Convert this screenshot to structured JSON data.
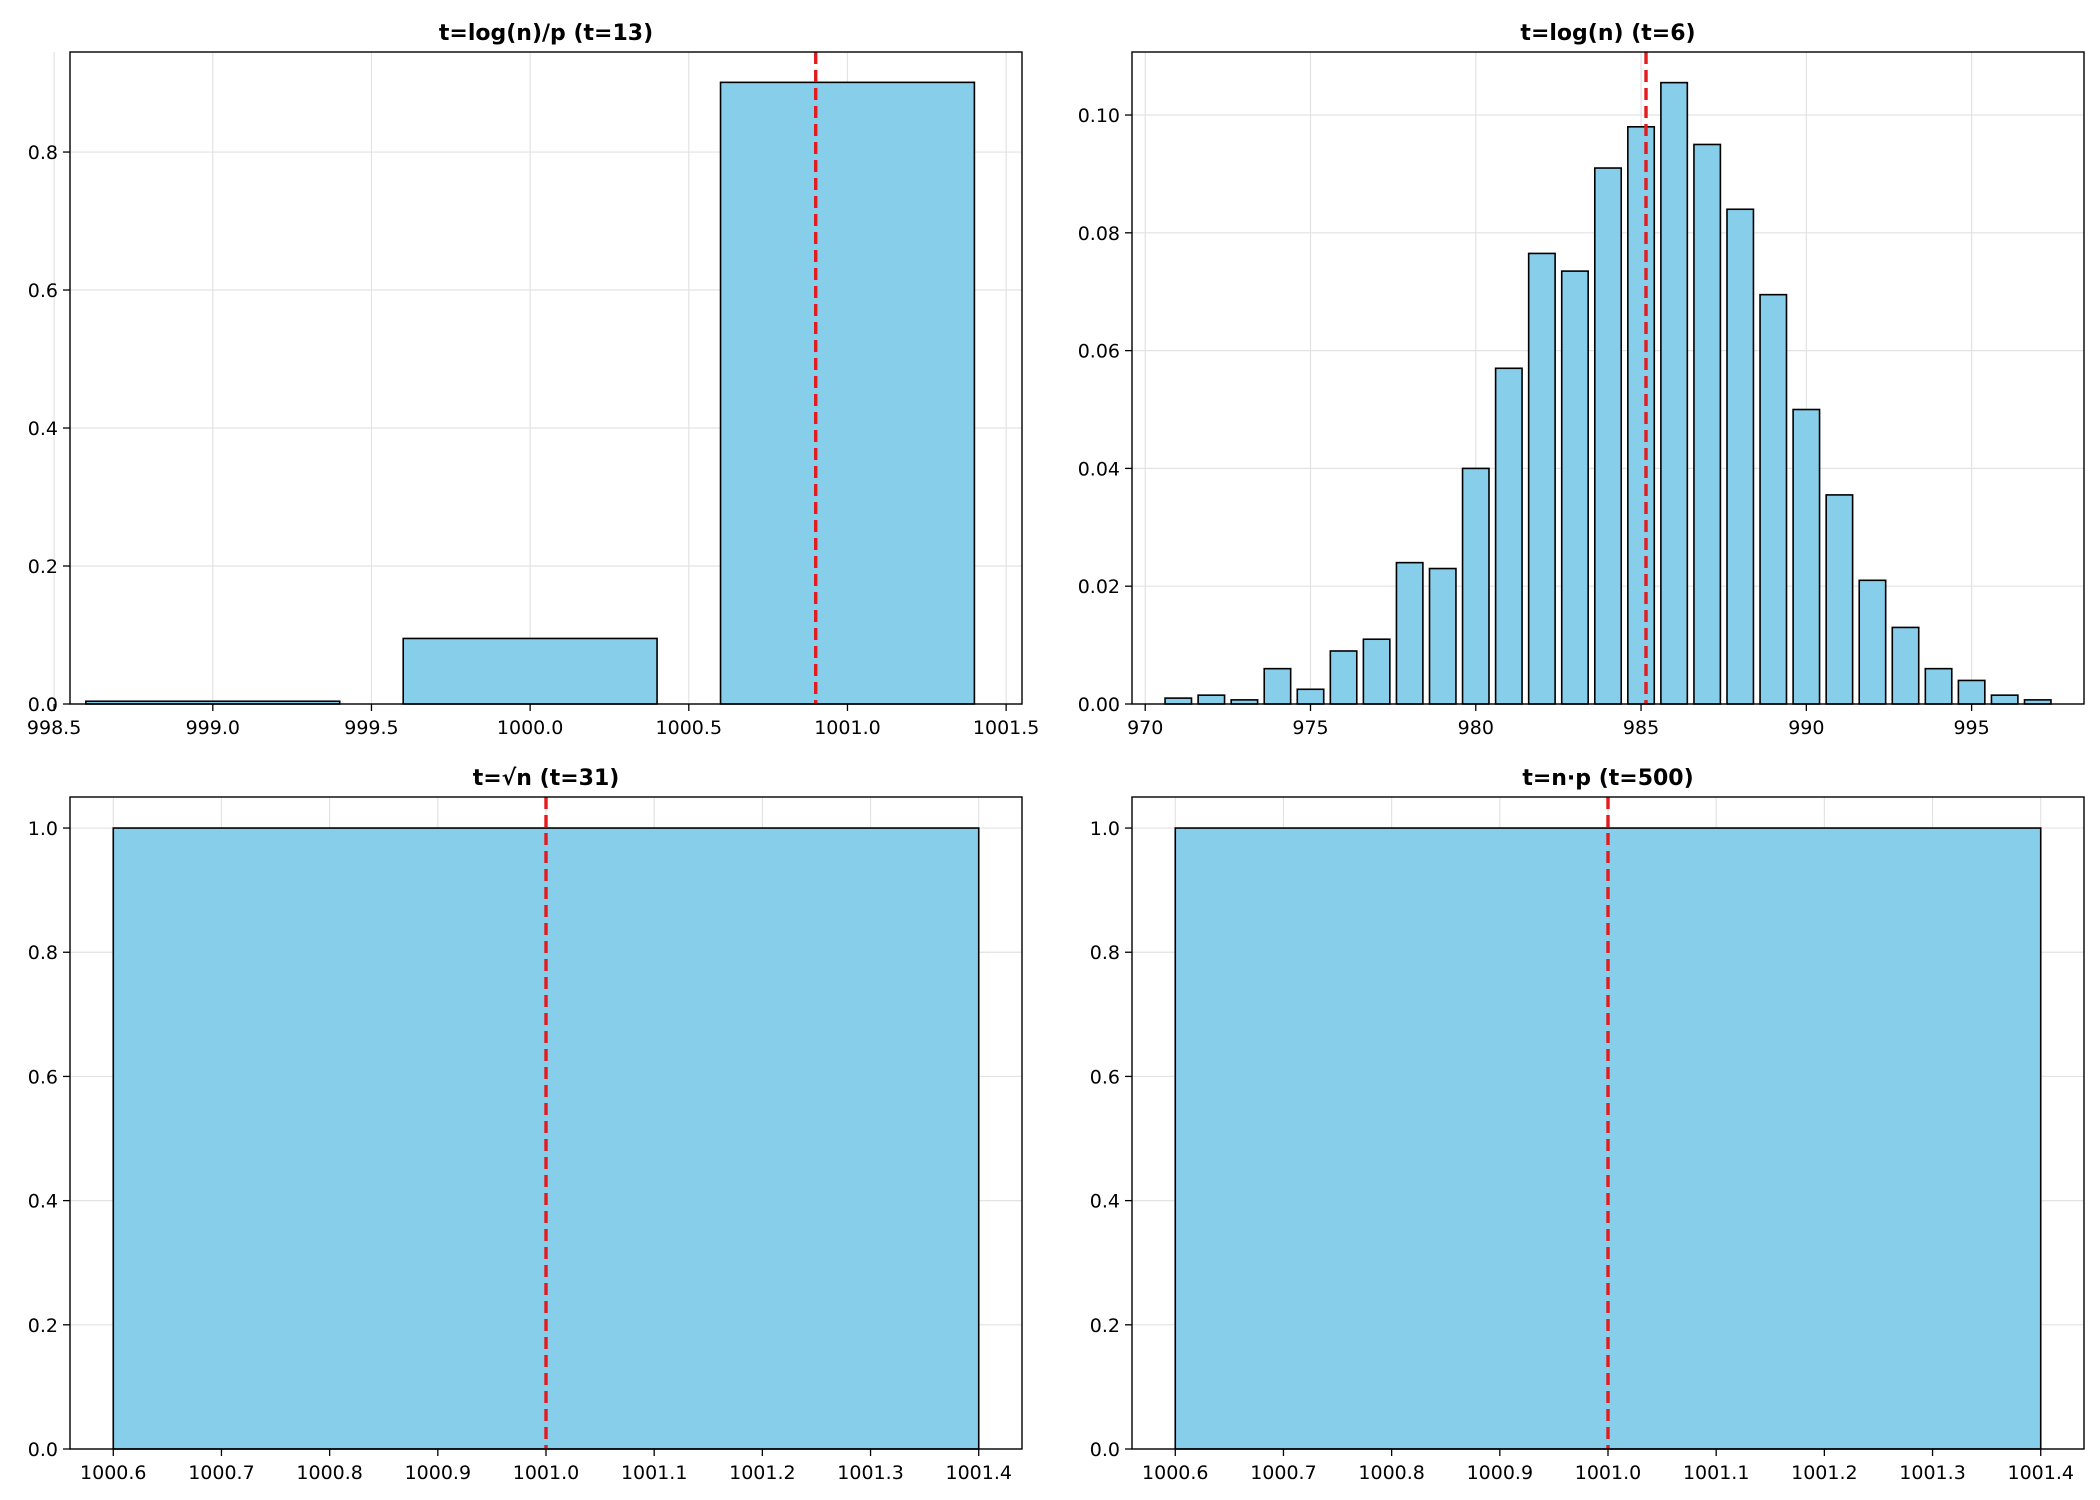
{
  "colors": {
    "bar_fill": "#87ceeb",
    "bar_edge": "#000000",
    "ref_line": "#e41a1c",
    "grid": "#e3e3e3"
  },
  "chart_data": [
    {
      "type": "bar",
      "title": "t=log(n)/p (t=13)",
      "x": [
        999.0,
        1000.0,
        1001.0
      ],
      "values": [
        0.004,
        0.095,
        0.901
      ],
      "bar_width": 0.8,
      "ref_line_x": 1000.9,
      "xlim": [
        998.55,
        1001.55
      ],
      "ylim": [
        0,
        0.945
      ],
      "xticks": [
        998.5,
        999.0,
        999.5,
        1000.0,
        1000.5,
        1001.0,
        1001.5
      ],
      "xtick_labels": [
        "998.5",
        "999.0",
        "999.5",
        "1000.0",
        "1000.5",
        "1001.0",
        "1001.5"
      ],
      "yticks": [
        0,
        0.2,
        0.4,
        0.6,
        0.8
      ],
      "ytick_labels": [
        "0.0",
        "0.2",
        "0.4",
        "0.6",
        "0.8"
      ],
      "grid": true
    },
    {
      "type": "bar",
      "title": "t=log(n) (t=6)",
      "x": [
        971,
        972,
        973,
        974,
        975,
        976,
        977,
        978,
        979,
        980,
        981,
        982,
        983,
        984,
        985,
        986,
        987,
        988,
        989,
        990,
        991,
        992,
        993,
        994,
        995,
        996,
        997
      ],
      "values": [
        0.001,
        0.0015,
        0.0007,
        0.006,
        0.0025,
        0.009,
        0.011,
        0.024,
        0.023,
        0.04,
        0.057,
        0.0765,
        0.0735,
        0.091,
        0.098,
        0.1055,
        0.095,
        0.084,
        0.0695,
        0.05,
        0.0355,
        0.021,
        0.013,
        0.006,
        0.004,
        0.0015,
        0.0007
      ],
      "bar_width": 0.8,
      "ref_line_x": 985.15,
      "xlim": [
        969.6,
        998.4
      ],
      "ylim": [
        0,
        0.1107
      ],
      "xticks": [
        970,
        975,
        980,
        985,
        990,
        995
      ],
      "xtick_labels": [
        "970",
        "975",
        "980",
        "985",
        "990",
        "995"
      ],
      "yticks": [
        0,
        0.02,
        0.04,
        0.06,
        0.08,
        0.1
      ],
      "ytick_labels": [
        "0.00",
        "0.02",
        "0.04",
        "0.06",
        "0.08",
        "0.10"
      ],
      "grid": true
    },
    {
      "type": "bar",
      "title": "t=√n (t=31)",
      "x": [
        1001.0
      ],
      "values": [
        1.0
      ],
      "bar_width": 0.8,
      "ref_line_x": 1001.0,
      "xlim": [
        1000.56,
        1001.44
      ],
      "ylim": [
        0,
        1.05
      ],
      "xticks": [
        1000.6,
        1000.7,
        1000.8,
        1000.9,
        1001.0,
        1001.1,
        1001.2,
        1001.3,
        1001.4
      ],
      "xtick_labels": [
        "1000.6",
        "1000.7",
        "1000.8",
        "1000.9",
        "1001.0",
        "1001.1",
        "1001.2",
        "1001.3",
        "1001.4"
      ],
      "yticks": [
        0,
        0.2,
        0.4,
        0.6,
        0.8,
        1.0
      ],
      "ytick_labels": [
        "0.0",
        "0.2",
        "0.4",
        "0.6",
        "0.8",
        "1.0"
      ],
      "grid": true
    },
    {
      "type": "bar",
      "title": "t=n·p (t=500)",
      "x": [
        1001.0
      ],
      "values": [
        1.0
      ],
      "bar_width": 0.8,
      "ref_line_x": 1001.0,
      "xlim": [
        1000.56,
        1001.44
      ],
      "ylim": [
        0,
        1.05
      ],
      "xticks": [
        1000.6,
        1000.7,
        1000.8,
        1000.9,
        1001.0,
        1001.1,
        1001.2,
        1001.3,
        1001.4
      ],
      "xtick_labels": [
        "1000.6",
        "1000.7",
        "1000.8",
        "1000.9",
        "1001.0",
        "1001.1",
        "1001.2",
        "1001.3",
        "1001.4"
      ],
      "yticks": [
        0,
        0.2,
        0.4,
        0.6,
        0.8,
        1.0
      ],
      "ytick_labels": [
        "0.0",
        "0.2",
        "0.4",
        "0.6",
        "0.8",
        "1.0"
      ],
      "grid": true
    }
  ]
}
